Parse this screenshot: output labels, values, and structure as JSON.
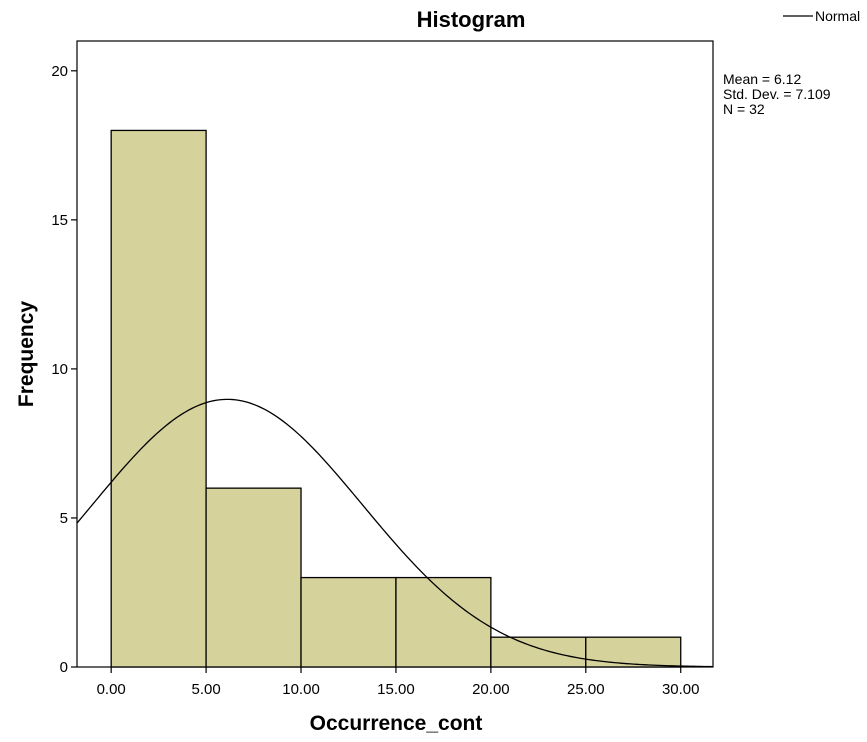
{
  "chart_data": {
    "type": "bar",
    "title": "Histogram",
    "xlabel": "Occurrence_cont",
    "ylabel": "Frequency",
    "bins": [
      {
        "start": 0,
        "end": 5,
        "count": 18
      },
      {
        "start": 5,
        "end": 10,
        "count": 6
      },
      {
        "start": 10,
        "end": 15,
        "count": 3
      },
      {
        "start": 15,
        "end": 20,
        "count": 3
      },
      {
        "start": 20,
        "end": 25,
        "count": 1
      },
      {
        "start": 25,
        "end": 30,
        "count": 1
      }
    ],
    "xlim": [
      -1.8,
      31.7
    ],
    "ylim": [
      0,
      21
    ],
    "x_ticks": [
      0,
      5,
      10,
      15,
      20,
      25,
      30
    ],
    "x_tick_labels": [
      "0.00",
      "5.00",
      "10.00",
      "15.00",
      "20.00",
      "25.00",
      "30.00"
    ],
    "y_ticks": [
      0,
      5,
      10,
      15,
      20
    ],
    "y_tick_labels": [
      "0",
      "5",
      "10",
      "15",
      "20"
    ],
    "normal_curve": {
      "mean": 6.12,
      "std_dev": 7.109,
      "n": 32,
      "bin_width": 5
    },
    "legend": {
      "position": "top-right",
      "entries": [
        "Normal"
      ]
    },
    "stats_text": [
      "Mean = 6.12",
      "Std. Dev. = 7.109",
      "N = 32"
    ],
    "grid": false,
    "colors": {
      "bar_fill": "#d6d29b",
      "bar_stroke": "#000000",
      "curve": "#000000",
      "axis": "#000000"
    }
  }
}
